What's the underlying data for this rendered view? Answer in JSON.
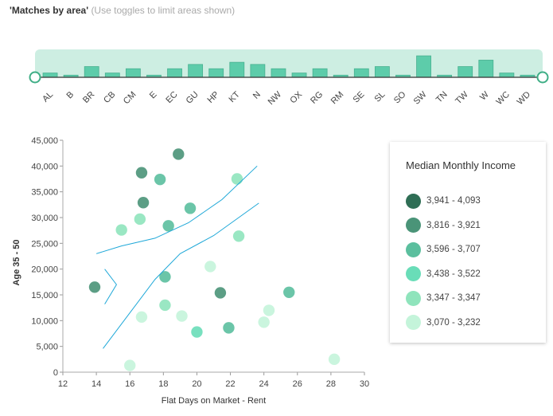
{
  "header": {
    "title": "'Matches by area'",
    "hint": "(Use toggles to limit areas shown)"
  },
  "colors": {
    "bin1": "#2f6e55",
    "bin2": "#4a9478",
    "bin3": "#5bbf9e",
    "bin4": "#69ddb8",
    "bin5": "#8fe4bc",
    "bin6": "#c4f4da",
    "histogram_fill": "#cdeee2",
    "histogram_bar": "#5dccaa",
    "trend_line": "#1fa8d8"
  },
  "legend": {
    "title": "Median Monthly Income",
    "items": [
      {
        "label": "3,941 - 4,093",
        "color": "#2f6e55"
      },
      {
        "label": "3,816 - 3,921",
        "color": "#4a9478"
      },
      {
        "label": "3,596 - 3,707",
        "color": "#5bbf9e"
      },
      {
        "label": "3,438 - 3,522",
        "color": "#69ddb8"
      },
      {
        "label": "3,347 - 3,347",
        "color": "#8fe4bc"
      },
      {
        "label": "3,070 - 3,232",
        "color": "#c4f4da"
      }
    ]
  },
  "chart_data": [
    {
      "type": "bar",
      "title": "Matches by area",
      "categories": [
        "AL",
        "B",
        "BR",
        "CB",
        "CM",
        "E",
        "EC",
        "GU",
        "HP",
        "KT",
        "N",
        "NW",
        "OX",
        "RG",
        "RM",
        "SE",
        "SL",
        "SO",
        "SW",
        "TN",
        "TW",
        "W",
        "WC",
        "WD"
      ],
      "values": [
        2,
        1,
        5,
        2,
        4,
        1,
        4,
        6,
        4,
        7,
        6,
        4,
        2,
        4,
        1,
        4,
        5,
        1,
        10,
        1,
        5,
        8,
        2,
        1
      ],
      "ylim": [
        0,
        13
      ]
    },
    {
      "type": "scatter",
      "xlabel": "Flat Days on Market - Rent",
      "ylabel": "Age 35 - 50",
      "xlim": [
        12,
        30
      ],
      "ylim": [
        0,
        45000
      ],
      "xticks": [
        "12",
        "14",
        "16",
        "18",
        "20",
        "22",
        "24",
        "26",
        "28",
        "30"
      ],
      "yticks": [
        "0",
        "5,000",
        "10,000",
        "15,000",
        "20,000",
        "25,000",
        "30,000",
        "35,000",
        "40,000",
        "45,000"
      ],
      "points": [
        {
          "x": 18.9,
          "y": 42300,
          "bin": 2
        },
        {
          "x": 16.7,
          "y": 38700,
          "bin": 2
        },
        {
          "x": 17.8,
          "y": 37400,
          "bin": 3
        },
        {
          "x": 22.4,
          "y": 37500,
          "bin": 5
        },
        {
          "x": 16.8,
          "y": 32900,
          "bin": 2
        },
        {
          "x": 19.6,
          "y": 31800,
          "bin": 3
        },
        {
          "x": 16.6,
          "y": 29700,
          "bin": 5
        },
        {
          "x": 15.5,
          "y": 27600,
          "bin": 5
        },
        {
          "x": 18.3,
          "y": 28400,
          "bin": 3
        },
        {
          "x": 22.5,
          "y": 26400,
          "bin": 5
        },
        {
          "x": 20.8,
          "y": 20500,
          "bin": 6
        },
        {
          "x": 18.1,
          "y": 18500,
          "bin": 3
        },
        {
          "x": 13.9,
          "y": 16500,
          "bin": 2
        },
        {
          "x": 21.4,
          "y": 15400,
          "bin": 2
        },
        {
          "x": 25.5,
          "y": 15500,
          "bin": 3
        },
        {
          "x": 18.1,
          "y": 13000,
          "bin": 5
        },
        {
          "x": 24.3,
          "y": 12000,
          "bin": 6
        },
        {
          "x": 16.7,
          "y": 10700,
          "bin": 6
        },
        {
          "x": 19.1,
          "y": 10900,
          "bin": 6
        },
        {
          "x": 24.0,
          "y": 9700,
          "bin": 6
        },
        {
          "x": 21.9,
          "y": 8600,
          "bin": 3
        },
        {
          "x": 20.0,
          "y": 7800,
          "bin": 4
        },
        {
          "x": 28.2,
          "y": 2500,
          "bin": 6
        },
        {
          "x": 16.0,
          "y": 1300,
          "bin": 6
        }
      ],
      "bands": {
        "upper": [
          [
            14.0,
            23000
          ],
          [
            15.5,
            24500
          ],
          [
            17.5,
            26000
          ],
          [
            19.5,
            29000
          ],
          [
            21.5,
            33500
          ],
          [
            23.6,
            40000
          ]
        ],
        "lower": [
          [
            14.4,
            4600
          ],
          [
            16.0,
            11500
          ],
          [
            17.5,
            18000
          ],
          [
            19.0,
            23000
          ],
          [
            21.0,
            26500
          ],
          [
            23.7,
            32800
          ]
        ],
        "hook": [
          [
            14.5,
            20000
          ],
          [
            15.2,
            17000
          ],
          [
            14.5,
            13200
          ]
        ]
      }
    }
  ]
}
